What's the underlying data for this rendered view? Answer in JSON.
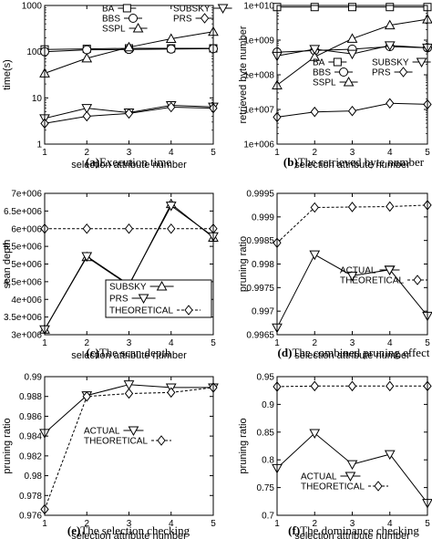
{
  "chart_data": [
    {
      "type": "line",
      "caption_letter": "(a)",
      "caption_text": "Execution time",
      "xlabel": "selection attribute number",
      "ylabel": "time(s)",
      "x": [
        1,
        2,
        3,
        4,
        5
      ],
      "xlim": [
        1,
        5
      ],
      "yscale": "log",
      "ylim": [
        1,
        1000
      ],
      "yticks": [
        1,
        10,
        100,
        1000
      ],
      "ytick_labels": [
        "1",
        "10",
        "100",
        "1000"
      ],
      "legend": "top",
      "series": [
        {
          "name": "BA",
          "marker": "square",
          "dash": "solid",
          "values": [
            112,
            115,
            118,
            118,
            118
          ]
        },
        {
          "name": "BBS",
          "marker": "circle",
          "dash": "solid",
          "values": [
            100,
            110,
            112,
            114,
            116
          ]
        },
        {
          "name": "SSPL",
          "marker": "triangle-up",
          "dash": "solid",
          "values": [
            34,
            72,
            125,
            190,
            270
          ]
        },
        {
          "name": "SUBSKY",
          "marker": "triangle-down",
          "dash": "solid",
          "values": [
            3.6,
            6.0,
            4.8,
            6.9,
            6.4
          ]
        },
        {
          "name": "PRS",
          "marker": "diamond",
          "dash": "solid",
          "values": [
            2.8,
            4.0,
            4.6,
            6.3,
            6.0
          ]
        }
      ]
    },
    {
      "type": "line",
      "caption_letter": "(b)",
      "caption_text": "The retrieved byte number",
      "xlabel": "selection attribute number",
      "ylabel": "retrieved byte number",
      "x": [
        1,
        2,
        3,
        4,
        5
      ],
      "xlim": [
        1,
        5
      ],
      "yscale": "log",
      "ylim": [
        1000000,
        10000000000
      ],
      "yticks": [
        1000000,
        10000000,
        100000000,
        1000000000,
        10000000000
      ],
      "ytick_labels": [
        "1e+006",
        "1e+007",
        "1e+008",
        "1e+009",
        "1e+010"
      ],
      "legend": "middle",
      "series": [
        {
          "name": "BA",
          "marker": "square",
          "dash": "solid",
          "values": [
            9000000000,
            9000000000,
            9000000000,
            9000000000,
            9000000000
          ]
        },
        {
          "name": "BBS",
          "marker": "circle",
          "dash": "solid",
          "values": [
            450000000,
            500000000,
            550000000,
            650000000,
            600000000
          ]
        },
        {
          "name": "SSPL",
          "marker": "triangle-up",
          "dash": "solid",
          "values": [
            50000000,
            330000000,
            1100000000,
            2700000000,
            4000000000
          ]
        },
        {
          "name": "SUBSKY",
          "marker": "triangle-down",
          "dash": "solid",
          "values": [
            350000000,
            550000000,
            400000000,
            700000000,
            600000000
          ]
        },
        {
          "name": "PRS",
          "marker": "diamond",
          "dash": "solid",
          "values": [
            6000000,
            8500000,
            9000000,
            15000000,
            14000000
          ]
        }
      ]
    },
    {
      "type": "line",
      "caption_letter": "(c)",
      "caption_text": "The scan depth",
      "xlabel": "selection attribute number",
      "ylabel": "scan depth",
      "x": [
        1,
        2,
        3,
        4,
        5
      ],
      "xlim": [
        1,
        5
      ],
      "yscale": "linear",
      "ylim": [
        3000000,
        7000000
      ],
      "yticks": [
        3000000,
        3500000,
        4000000,
        4500000,
        5000000,
        5500000,
        6000000,
        6500000,
        7000000
      ],
      "ytick_labels": [
        "3e+006",
        "3.5e+006",
        "4e+006",
        "4.5e+006",
        "5e+006",
        "5.5e+006",
        "6e+006",
        "6.5e+006",
        "7e+006"
      ],
      "legend": "bottom-right",
      "series": [
        {
          "name": "SUBSKY",
          "marker": "triangle-up",
          "dash": "solid",
          "values": [
            3150000,
            5200000,
            4400000,
            6700000,
            5750000
          ]
        },
        {
          "name": "PRS",
          "marker": "triangle-down",
          "dash": "solid",
          "values": [
            3150000,
            5220000,
            4420000,
            6650000,
            5780000
          ]
        },
        {
          "name": "THEORETICAL",
          "marker": "diamond",
          "dash": "dashed",
          "values": [
            6000000,
            6000000,
            6000000,
            6000000,
            6000000
          ]
        }
      ]
    },
    {
      "type": "line",
      "caption_letter": "(d)",
      "caption_text": "The combined pruning effect",
      "xlabel": "selection attribute number",
      "ylabel": "pruning ratio",
      "x": [
        1,
        2,
        3,
        4,
        5
      ],
      "xlim": [
        1,
        5
      ],
      "yscale": "linear",
      "ylim": [
        0.9965,
        0.9995
      ],
      "yticks": [
        0.9965,
        0.997,
        0.9975,
        0.998,
        0.9985,
        0.999,
        0.9995
      ],
      "ytick_labels": [
        "0.9965",
        "0.997",
        "0.9975",
        "0.998",
        "0.9985",
        "0.999",
        "0.9995"
      ],
      "legend": "middle-right",
      "series": [
        {
          "name": "ACTUAL",
          "marker": "triangle-down",
          "dash": "solid",
          "values": [
            0.99665,
            0.9982,
            0.99775,
            0.99788,
            0.9969
          ]
        },
        {
          "name": "THEORETICAL",
          "marker": "diamond",
          "dash": "dashed",
          "values": [
            0.99845,
            0.9992,
            0.99921,
            0.99922,
            0.99925
          ]
        }
      ]
    },
    {
      "type": "line",
      "caption_letter": "(e)",
      "caption_text": "The selection checking",
      "xlabel": "selection attribute number",
      "ylabel": "pruning ratio",
      "x": [
        1,
        2,
        3,
        4,
        5
      ],
      "xlim": [
        1,
        5
      ],
      "yscale": "linear",
      "ylim": [
        0.976,
        0.99
      ],
      "yticks": [
        0.976,
        0.978,
        0.98,
        0.982,
        0.984,
        0.986,
        0.988,
        0.99
      ],
      "ytick_labels": [
        "0.976",
        "0.978",
        "0.98",
        "0.982",
        "0.984",
        "0.986",
        "0.988",
        "0.99"
      ],
      "legend": "middle",
      "series": [
        {
          "name": "ACTUAL",
          "marker": "triangle-down",
          "dash": "solid",
          "values": [
            0.9843,
            0.9881,
            0.9892,
            0.9889,
            0.9889
          ]
        },
        {
          "name": "THEORETICAL",
          "marker": "diamond",
          "dash": "dashed",
          "values": [
            0.9766,
            0.988,
            0.9883,
            0.9884,
            0.9889
          ]
        }
      ]
    },
    {
      "type": "line",
      "caption_letter": "(f)",
      "caption_text": "The dominance checking",
      "xlabel": "selection attribute number",
      "ylabel": "pruning ratio",
      "x": [
        1,
        2,
        3,
        4,
        5
      ],
      "xlim": [
        1,
        5
      ],
      "yscale": "linear",
      "ylim": [
        0.7,
        0.95
      ],
      "yticks": [
        0.7,
        0.75,
        0.8,
        0.85,
        0.9,
        0.95
      ],
      "ytick_labels": [
        "0.7",
        "0.75",
        "0.8",
        "0.85",
        "0.9",
        "0.95"
      ],
      "legend": "bottom",
      "series": [
        {
          "name": "ACTUAL",
          "marker": "triangle-down",
          "dash": "solid",
          "values": [
            0.785,
            0.848,
            0.792,
            0.81,
            0.722
          ]
        },
        {
          "name": "THEORETICAL",
          "marker": "diamond",
          "dash": "dashed",
          "values": [
            0.932,
            0.933,
            0.933,
            0.933,
            0.933
          ]
        }
      ]
    }
  ]
}
